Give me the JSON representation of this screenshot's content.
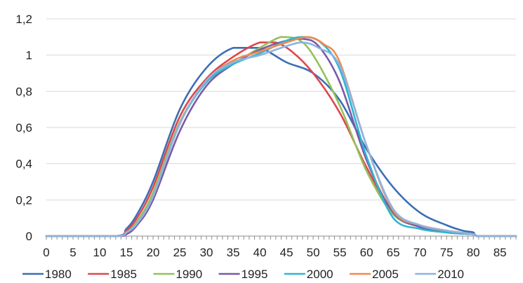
{
  "chart_data": {
    "type": "line",
    "title": "",
    "xlabel": "",
    "ylabel": "",
    "xlim": [
      0,
      88
    ],
    "ylim": [
      0,
      1.2
    ],
    "grid": "horizontal",
    "legend_position": "bottom",
    "x_ticks": [
      0,
      5,
      10,
      15,
      20,
      25,
      30,
      35,
      40,
      45,
      50,
      55,
      60,
      65,
      70,
      75,
      80,
      85
    ],
    "x_tick_labels": [
      "0",
      "5",
      "10",
      "15",
      "20",
      "25",
      "30",
      "35",
      "40",
      "45",
      "50",
      "55",
      "60",
      "65",
      "70",
      "75",
      "80",
      "85"
    ],
    "y_ticks": [
      0,
      0.2,
      0.4,
      0.6,
      0.8,
      1.0,
      1.2
    ],
    "y_tick_labels": [
      "0",
      "0,2",
      "0,4",
      "0,6",
      "0,8",
      "1",
      "1,2"
    ],
    "series": [
      {
        "name": "1980",
        "color": "#3a6fb5",
        "points": [
          [
            0,
            0
          ],
          [
            13,
            0
          ],
          [
            15,
            0.04
          ],
          [
            17,
            0.12
          ],
          [
            20,
            0.3
          ],
          [
            25,
            0.7
          ],
          [
            30,
            0.93
          ],
          [
            35,
            1.04
          ],
          [
            40,
            1.04
          ],
          [
            45,
            0.96
          ],
          [
            50,
            0.9
          ],
          [
            55,
            0.75
          ],
          [
            60,
            0.48
          ],
          [
            65,
            0.27
          ],
          [
            70,
            0.13
          ],
          [
            75,
            0.06
          ],
          [
            78,
            0.03
          ],
          [
            80,
            0.02
          ],
          [
            81,
            0
          ],
          [
            88,
            0
          ]
        ]
      },
      {
        "name": "1985",
        "color": "#e0464e",
        "points": [
          [
            0,
            0
          ],
          [
            13,
            0
          ],
          [
            15,
            0.03
          ],
          [
            17,
            0.1
          ],
          [
            20,
            0.27
          ],
          [
            25,
            0.66
          ],
          [
            30,
            0.87
          ],
          [
            35,
            0.99
          ],
          [
            40,
            1.07
          ],
          [
            43,
            1.07
          ],
          [
            46,
            1.02
          ],
          [
            50,
            0.9
          ],
          [
            55,
            0.68
          ],
          [
            60,
            0.38
          ],
          [
            65,
            0.13
          ],
          [
            70,
            0.06
          ],
          [
            75,
            0.03
          ],
          [
            80,
            0.01
          ],
          [
            81,
            0
          ],
          [
            88,
            0
          ]
        ]
      },
      {
        "name": "1990",
        "color": "#94c15a",
        "points": [
          [
            0,
            0
          ],
          [
            13,
            0
          ],
          [
            15,
            0.02
          ],
          [
            17,
            0.08
          ],
          [
            20,
            0.24
          ],
          [
            25,
            0.63
          ],
          [
            30,
            0.85
          ],
          [
            35,
            0.95
          ],
          [
            40,
            1.04
          ],
          [
            44,
            1.1
          ],
          [
            47,
            1.09
          ],
          [
            50,
            1.0
          ],
          [
            55,
            0.72
          ],
          [
            60,
            0.36
          ],
          [
            65,
            0.12
          ],
          [
            70,
            0.05
          ],
          [
            75,
            0.02
          ],
          [
            80,
            0.01
          ],
          [
            81,
            0
          ],
          [
            88,
            0
          ]
        ]
      },
      {
        "name": "1995",
        "color": "#7a5aa6",
        "points": [
          [
            0,
            0
          ],
          [
            13,
            0
          ],
          [
            15,
            0.01
          ],
          [
            17,
            0.06
          ],
          [
            20,
            0.2
          ],
          [
            25,
            0.58
          ],
          [
            30,
            0.83
          ],
          [
            35,
            0.95
          ],
          [
            40,
            1.03
          ],
          [
            45,
            1.08
          ],
          [
            48,
            1.09
          ],
          [
            51,
            1.05
          ],
          [
            55,
            0.85
          ],
          [
            60,
            0.42
          ],
          [
            65,
            0.13
          ],
          [
            70,
            0.05
          ],
          [
            75,
            0.02
          ],
          [
            80,
            0.01
          ],
          [
            81,
            0
          ],
          [
            88,
            0
          ]
        ]
      },
      {
        "name": "2000",
        "color": "#2fb5d0",
        "points": [
          [
            0,
            0
          ],
          [
            13,
            0
          ],
          [
            15,
            0.02
          ],
          [
            17,
            0.07
          ],
          [
            20,
            0.22
          ],
          [
            25,
            0.62
          ],
          [
            30,
            0.85
          ],
          [
            35,
            0.95
          ],
          [
            40,
            1.01
          ],
          [
            45,
            1.08
          ],
          [
            48,
            1.1
          ],
          [
            51,
            1.08
          ],
          [
            55,
            0.92
          ],
          [
            60,
            0.44
          ],
          [
            65,
            0.1
          ],
          [
            70,
            0.04
          ],
          [
            75,
            0.02
          ],
          [
            80,
            0.01
          ],
          [
            81,
            0
          ],
          [
            88,
            0
          ]
        ]
      },
      {
        "name": "2005",
        "color": "#f08a4e",
        "points": [
          [
            0,
            0
          ],
          [
            13,
            0
          ],
          [
            15,
            0.02
          ],
          [
            17,
            0.07
          ],
          [
            20,
            0.22
          ],
          [
            25,
            0.62
          ],
          [
            30,
            0.86
          ],
          [
            35,
            0.97
          ],
          [
            40,
            1.02
          ],
          [
            45,
            1.07
          ],
          [
            49,
            1.1
          ],
          [
            52,
            1.06
          ],
          [
            55,
            0.96
          ],
          [
            60,
            0.5
          ],
          [
            65,
            0.14
          ],
          [
            70,
            0.06
          ],
          [
            75,
            0.03
          ],
          [
            80,
            0.01
          ],
          [
            81,
            0
          ],
          [
            88,
            0
          ]
        ]
      },
      {
        "name": "2010",
        "color": "#8cb4e0",
        "points": [
          [
            0,
            0
          ],
          [
            13,
            0
          ],
          [
            15,
            0.02
          ],
          [
            17,
            0.07
          ],
          [
            20,
            0.22
          ],
          [
            25,
            0.62
          ],
          [
            30,
            0.86
          ],
          [
            35,
            0.96
          ],
          [
            40,
            1.0
          ],
          [
            45,
            1.05
          ],
          [
            48,
            1.07
          ],
          [
            51,
            1.04
          ],
          [
            55,
            0.94
          ],
          [
            60,
            0.5
          ],
          [
            65,
            0.15
          ],
          [
            70,
            0.06
          ],
          [
            75,
            0.03
          ],
          [
            80,
            0.01
          ],
          [
            81,
            0
          ],
          [
            88,
            0
          ]
        ]
      }
    ]
  }
}
